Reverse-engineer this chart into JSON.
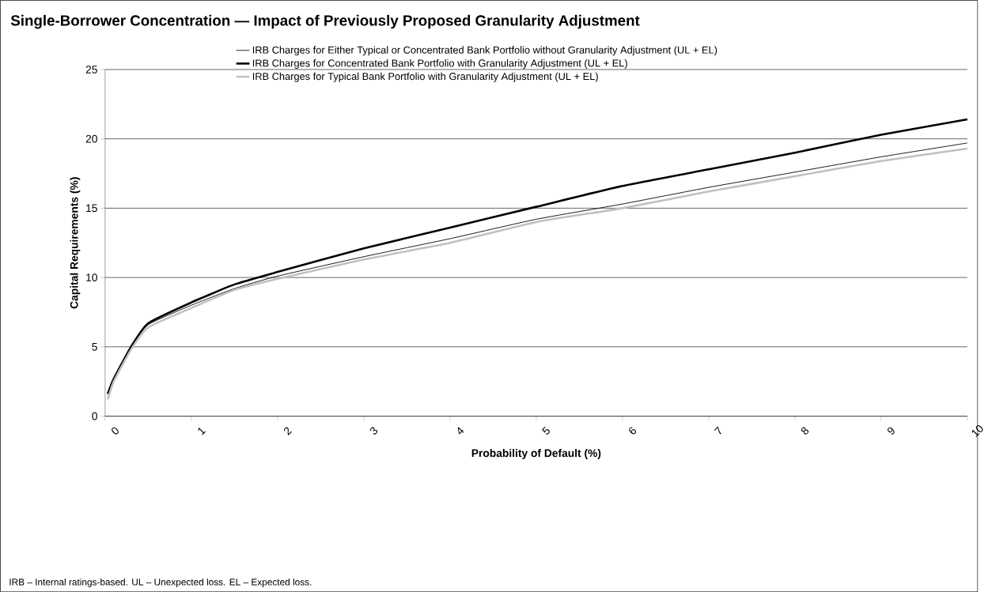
{
  "chart_data": {
    "type": "line",
    "title": "Single-Borrower Concentration — Impact of Previously Proposed Granularity Adjustment",
    "xlabel": "Probability of Default (%)",
    "ylabel": "Capital Requirements (%)",
    "annotations": [
      "IRB – Internal ratings-based. UL – Unexpected loss. EL – Expected loss."
    ],
    "x": [
      0.03,
      0.1,
      0.3,
      0.5,
      1,
      1.5,
      2,
      3,
      4,
      5,
      6,
      7,
      8,
      9,
      10
    ],
    "series": [
      {
        "name": "IRB Charges for Either Typical or Concentrated Bank Portfolio without Granularity Adjustment (UL + EL)",
        "color": "#000000",
        "values": [
          null,
          2.6,
          5.0,
          6.6,
          8.0,
          9.2,
          10.1,
          11.5,
          12.8,
          14.2,
          15.3,
          16.5,
          17.6,
          18.7,
          19.7
        ]
      },
      {
        "name": "IRB Charges for Concentrated Bank Portfolio with Granularity Adjustment (UL + EL)",
        "color": "#000000",
        "values": [
          1.6,
          2.7,
          5.0,
          6.7,
          8.2,
          9.5,
          10.4,
          12.1,
          13.6,
          15.1,
          16.6,
          17.8,
          19.0,
          20.3,
          21.4
        ]
      },
      {
        "name": "IRB Charges for Typical Bank Portfolio with Granularity Adjustment (UL + EL)",
        "color": "#c0c0c0",
        "values": [
          1.2,
          2.5,
          4.8,
          6.4,
          7.8,
          9.1,
          9.9,
          11.3,
          12.5,
          14.0,
          15.0,
          16.2,
          17.3,
          18.4,
          19.3
        ]
      }
    ],
    "xlim": [
      0,
      10
    ],
    "ylim": [
      0,
      25
    ],
    "xticks": [
      0,
      1,
      2,
      3,
      4,
      5,
      6,
      7,
      8,
      9,
      10
    ],
    "yticks": [
      0,
      5,
      10,
      15,
      20,
      25
    ],
    "grid": "y",
    "legend": "top"
  }
}
